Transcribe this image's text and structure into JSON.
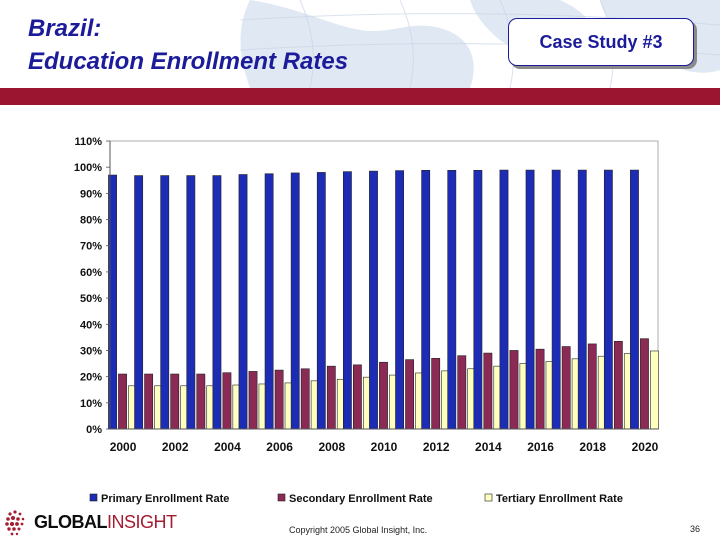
{
  "slide": {
    "title_line1": "Brazil:",
    "title_line2": "Education Enrollment Rates",
    "case_study": "Case Study #3",
    "copyright": "Copyright 2005 Global Insight, Inc.",
    "page_number": "36",
    "logo_part1": "GLOBAL",
    "logo_part2": "INSIGHT"
  },
  "colors": {
    "title": "#1c1c9a",
    "accent_bar": "#9b1530",
    "primary": "#1c2cb5",
    "secondary": "#8c2a56",
    "tertiary": "#ffffc0"
  },
  "chart_data": {
    "type": "bar",
    "title": "",
    "xlabel": "",
    "ylabel": "",
    "ylim": [
      0,
      110
    ],
    "y_ticks": [
      "0%",
      "10%",
      "20%",
      "30%",
      "40%",
      "50%",
      "60%",
      "70%",
      "80%",
      "90%",
      "100%",
      "110%"
    ],
    "categories": [
      "2000",
      "2001",
      "2002",
      "2003",
      "2004",
      "2005",
      "2006",
      "2007",
      "2008",
      "2009",
      "2010",
      "2011",
      "2012",
      "2013",
      "2014",
      "2015",
      "2016",
      "2017",
      "2018",
      "2019",
      "2020"
    ],
    "x_tick_labels": [
      "2000",
      "",
      "2002",
      "",
      "2004",
      "",
      "2006",
      "",
      "2008",
      "",
      "2010",
      "",
      "2012",
      "",
      "2014",
      "",
      "2016",
      "",
      "2018",
      "",
      "2020"
    ],
    "legend_position": "bottom",
    "series": [
      {
        "name": "Primary Enrollment Rate",
        "color": "#1c2cb5",
        "values": [
          97,
          96.8,
          96.8,
          96.8,
          96.8,
          97.2,
          97.5,
          97.8,
          98,
          98.3,
          98.5,
          98.7,
          98.8,
          98.8,
          98.8,
          98.9,
          98.9,
          98.9,
          98.9,
          98.9,
          98.9
        ]
      },
      {
        "name": "Secondary Enrollment Rate",
        "color": "#8c2a56",
        "values": [
          21,
          21,
          21,
          21,
          21.5,
          22,
          22.5,
          23,
          24,
          24.5,
          25.5,
          26.5,
          27,
          28,
          29,
          30,
          30.5,
          31.5,
          32.5,
          33.5,
          34.5
        ]
      },
      {
        "name": "Tertiary Enrollment Rate",
        "color": "#ffffc0",
        "values": [
          16.5,
          16.5,
          16.5,
          16.5,
          16.8,
          17.2,
          17.6,
          18.4,
          19,
          19.8,
          20.6,
          21.4,
          22.2,
          23,
          24,
          25,
          25.8,
          26.8,
          27.8,
          28.8,
          29.8
        ]
      }
    ]
  }
}
